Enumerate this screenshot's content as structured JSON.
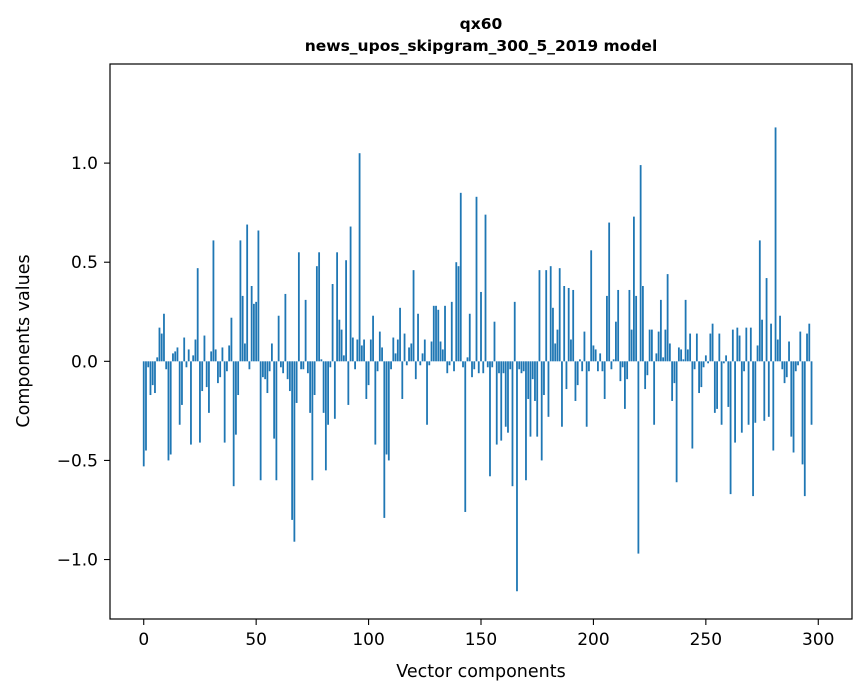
{
  "chart_data": {
    "type": "bar",
    "title_line1": "qx60",
    "title_line2": "news_upos_skipgram_300_5_2019 model",
    "xlabel": "Vector components",
    "ylabel": "Components values",
    "xlim": [
      -15,
      315
    ],
    "ylim": [
      -1.3,
      1.5
    ],
    "xticks": [
      0,
      50,
      100,
      150,
      200,
      250,
      300
    ],
    "xtick_labels": [
      "0",
      "50",
      "100",
      "150",
      "200",
      "250",
      "300"
    ],
    "yticks": [
      -1.0,
      -0.5,
      0.0,
      0.5,
      1.0
    ],
    "ytick_labels": [
      "−1.0",
      "−0.5",
      "0.0",
      "0.5",
      "1.0"
    ],
    "bar_color": "#1f77b4",
    "values": [
      -0.53,
      -0.45,
      -0.03,
      -0.17,
      -0.12,
      -0.16,
      0.02,
      0.17,
      0.14,
      0.24,
      -0.04,
      -0.5,
      -0.47,
      0.04,
      0.05,
      0.07,
      -0.32,
      -0.22,
      0.12,
      -0.03,
      0.06,
      -0.42,
      0.03,
      0.11,
      0.47,
      -0.41,
      -0.15,
      0.13,
      -0.13,
      -0.26,
      0.05,
      0.61,
      0.06,
      -0.11,
      -0.08,
      0.07,
      -0.41,
      -0.05,
      0.08,
      0.22,
      -0.63,
      -0.37,
      -0.17,
      0.61,
      0.33,
      0.09,
      0.69,
      -0.04,
      0.38,
      0.29,
      0.3,
      0.66,
      -0.6,
      -0.08,
      -0.09,
      -0.16,
      -0.05,
      0.09,
      -0.39,
      -0.6,
      0.23,
      -0.03,
      -0.06,
      0.34,
      -0.09,
      -0.15,
      -0.8,
      -0.91,
      -0.21,
      0.55,
      -0.04,
      -0.04,
      0.31,
      -0.06,
      -0.26,
      -0.6,
      -0.17,
      0.48,
      0.55,
      0.01,
      -0.26,
      -0.55,
      -0.32,
      -0.03,
      0.39,
      -0.29,
      0.55,
      0.21,
      0.16,
      0.03,
      0.51,
      -0.22,
      0.68,
      0.12,
      -0.04,
      0.11,
      1.05,
      0.08,
      0.11,
      -0.19,
      -0.12,
      0.11,
      0.23,
      -0.42,
      -0.05,
      0.15,
      0.07,
      -0.79,
      -0.47,
      -0.5,
      -0.04,
      0.12,
      0.04,
      0.11,
      0.27,
      -0.19,
      0.14,
      -0.02,
      0.07,
      0.09,
      0.46,
      -0.09,
      0.24,
      -0.02,
      0.04,
      0.11,
      -0.32,
      -0.02,
      0.1,
      0.28,
      0.28,
      0.26,
      0.1,
      0.06,
      0.28,
      -0.06,
      -0.02,
      0.3,
      -0.05,
      0.5,
      0.48,
      0.85,
      -0.03,
      -0.76,
      0.02,
      0.24,
      -0.08,
      -0.04,
      0.83,
      -0.06,
      0.35,
      -0.06,
      0.74,
      -0.03,
      -0.58,
      -0.03,
      0.2,
      -0.42,
      -0.06,
      -0.4,
      -0.06,
      -0.33,
      -0.36,
      -0.04,
      -0.63,
      0.3,
      -1.16,
      -0.04,
      -0.06,
      -0.05,
      -0.6,
      -0.19,
      -0.38,
      -0.09,
      -0.2,
      -0.38,
      0.46,
      -0.5,
      -0.17,
      0.46,
      -0.28,
      0.48,
      0.27,
      0.09,
      0.16,
      0.47,
      -0.33,
      0.38,
      -0.14,
      0.37,
      0.11,
      0.36,
      -0.2,
      -0.12,
      0.01,
      -0.05,
      0.15,
      -0.33,
      -0.05,
      0.56,
      0.08,
      0.06,
      -0.05,
      0.04,
      -0.05,
      -0.19,
      0.33,
      0.7,
      -0.04,
      0.01,
      0.2,
      0.36,
      -0.1,
      -0.03,
      -0.24,
      -0.09,
      0.36,
      0.16,
      0.73,
      0.33,
      -0.97,
      0.99,
      0.38,
      -0.14,
      -0.07,
      0.16,
      0.16,
      -0.32,
      0.04,
      0.15,
      0.31,
      0.02,
      0.16,
      0.44,
      0.09,
      -0.2,
      -0.11,
      -0.61,
      0.07,
      0.06,
      0.01,
      0.31,
      0.06,
      0.14,
      -0.44,
      -0.04,
      0.14,
      -0.16,
      -0.13,
      -0.03,
      0.03,
      -0.01,
      0.14,
      0.19,
      -0.26,
      -0.24,
      0.14,
      -0.32,
      -0.01,
      0.03,
      -0.23,
      -0.67,
      0.16,
      -0.41,
      0.17,
      0.13,
      -0.36,
      -0.05,
      0.17,
      -0.32,
      0.17,
      -0.68,
      -0.31,
      0.08,
      0.61,
      0.21,
      -0.3,
      0.42,
      -0.28,
      0.19,
      -0.45,
      1.18,
      0.11,
      0.23,
      -0.04,
      -0.11,
      -0.08,
      0.1,
      -0.38,
      -0.46,
      -0.05,
      -0.02,
      0.15,
      -0.52,
      -0.68,
      0.14,
      0.19,
      -0.32
    ]
  }
}
